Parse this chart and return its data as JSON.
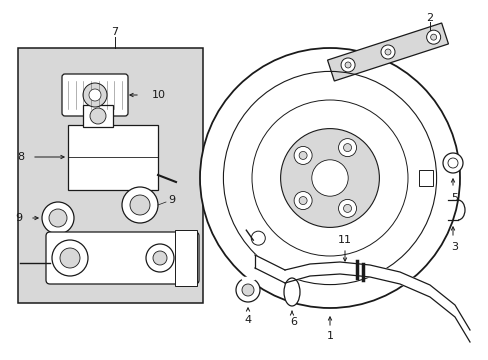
{
  "bg_color": "#ffffff",
  "line_color": "#1a1a1a",
  "gray_fill": "#d8d8d8",
  "figsize": [
    4.89,
    3.6
  ],
  "dpi": 100
}
